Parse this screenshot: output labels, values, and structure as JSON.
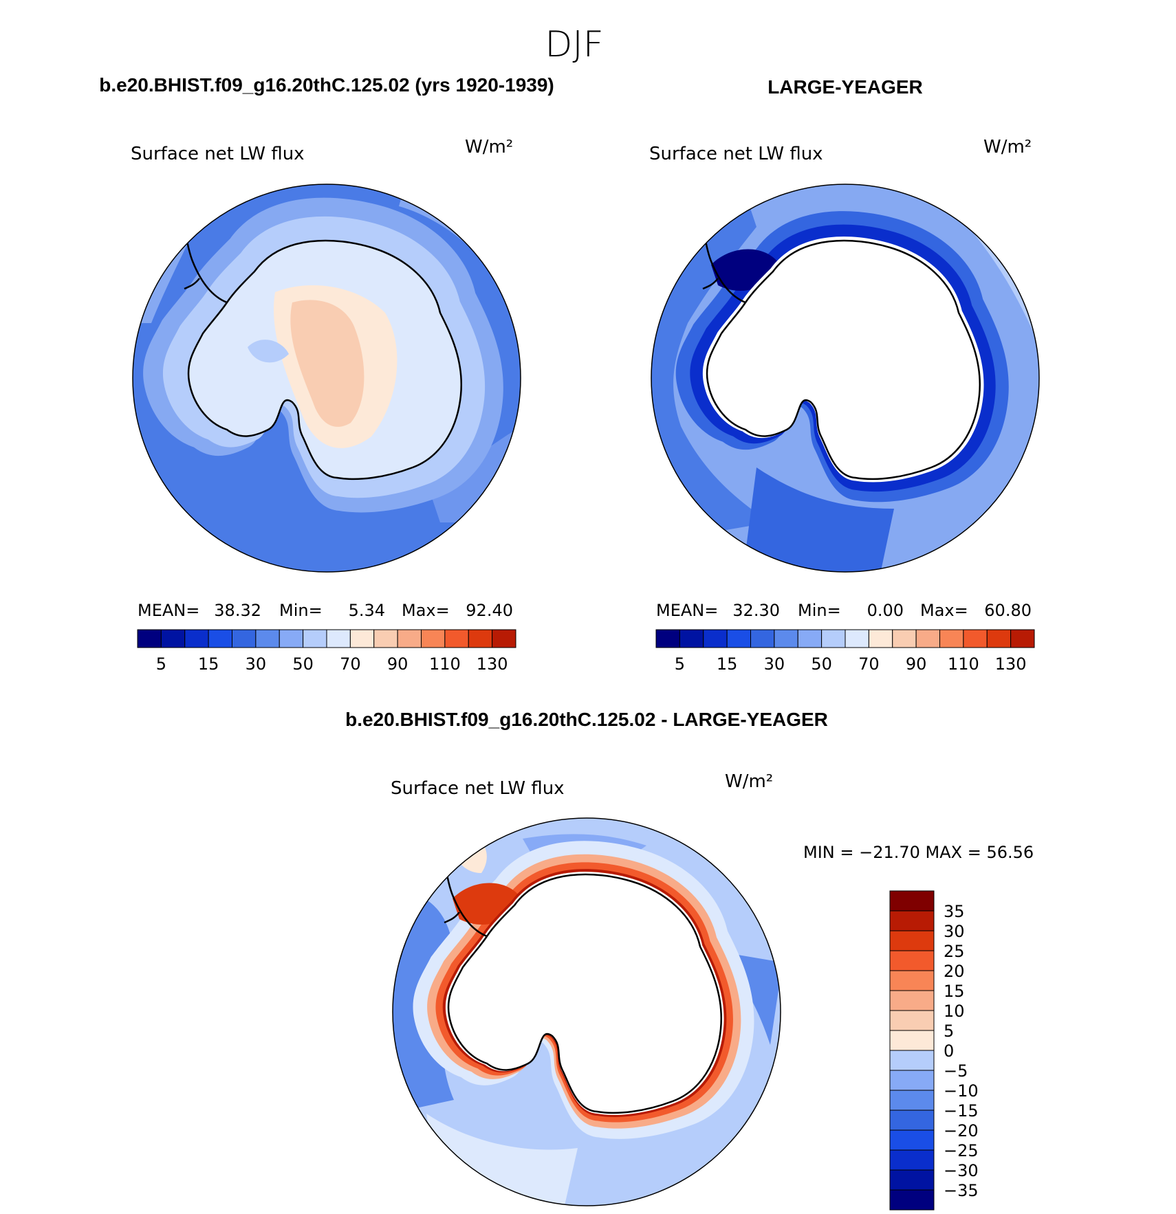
{
  "figure": {
    "title": "DJF"
  },
  "colors": {
    "div_scale": [
      "#00007f",
      "#0013a2",
      "#0a2ecc",
      "#1a4ee6",
      "#3466e0",
      "#5c8aec",
      "#87aaf6",
      "#b5cdfb",
      "#dde9fd",
      "#fde9d8",
      "#f9cdb2",
      "#f8ab88",
      "#f88556",
      "#f25a2c",
      "#dd3a0e",
      "#b81b04",
      "#7f0000"
    ],
    "ocean_mid": "#4a7be6",
    "ocean_light": "#86a9f2",
    "land_outline": "#000000"
  },
  "panels": [
    {
      "header": "b.e20.BHIST.f09_g16.20thC.125.02 (yrs 1920-1939)",
      "variable": "Surface net LW flux",
      "units": "W/m²",
      "stats": {
        "mean_label": "MEAN=",
        "mean": "38.32",
        "min_label": "Min=",
        "min": "5.34",
        "max_label": "Max=",
        "max": "92.40"
      },
      "colorbar_ticks": [
        "5",
        "15",
        "30",
        "50",
        "70",
        "90",
        "110",
        "130"
      ]
    },
    {
      "header": "LARGE-YEAGER",
      "variable": "Surface net LW flux",
      "units": "W/m²",
      "stats": {
        "mean_label": "MEAN=",
        "mean": "32.30",
        "min_label": "Min=",
        "min": "0.00",
        "max_label": "Max=",
        "max": "60.80"
      },
      "colorbar_ticks": [
        "5",
        "15",
        "30",
        "50",
        "70",
        "90",
        "110",
        "130"
      ]
    }
  ],
  "difference": {
    "header": "b.e20.BHIST.f09_g16.20thC.125.02 - LARGE-YEAGER",
    "variable": "Surface net LW flux",
    "units": "W/m²",
    "minmax": "MIN = −21.70 MAX =   56.56",
    "colorbar_labels": [
      "35",
      "30",
      "25",
      "20",
      "15",
      "10",
      "5",
      "0",
      "−5",
      "−10",
      "−15",
      "−20",
      "−25",
      "−30",
      "−35"
    ]
  }
}
